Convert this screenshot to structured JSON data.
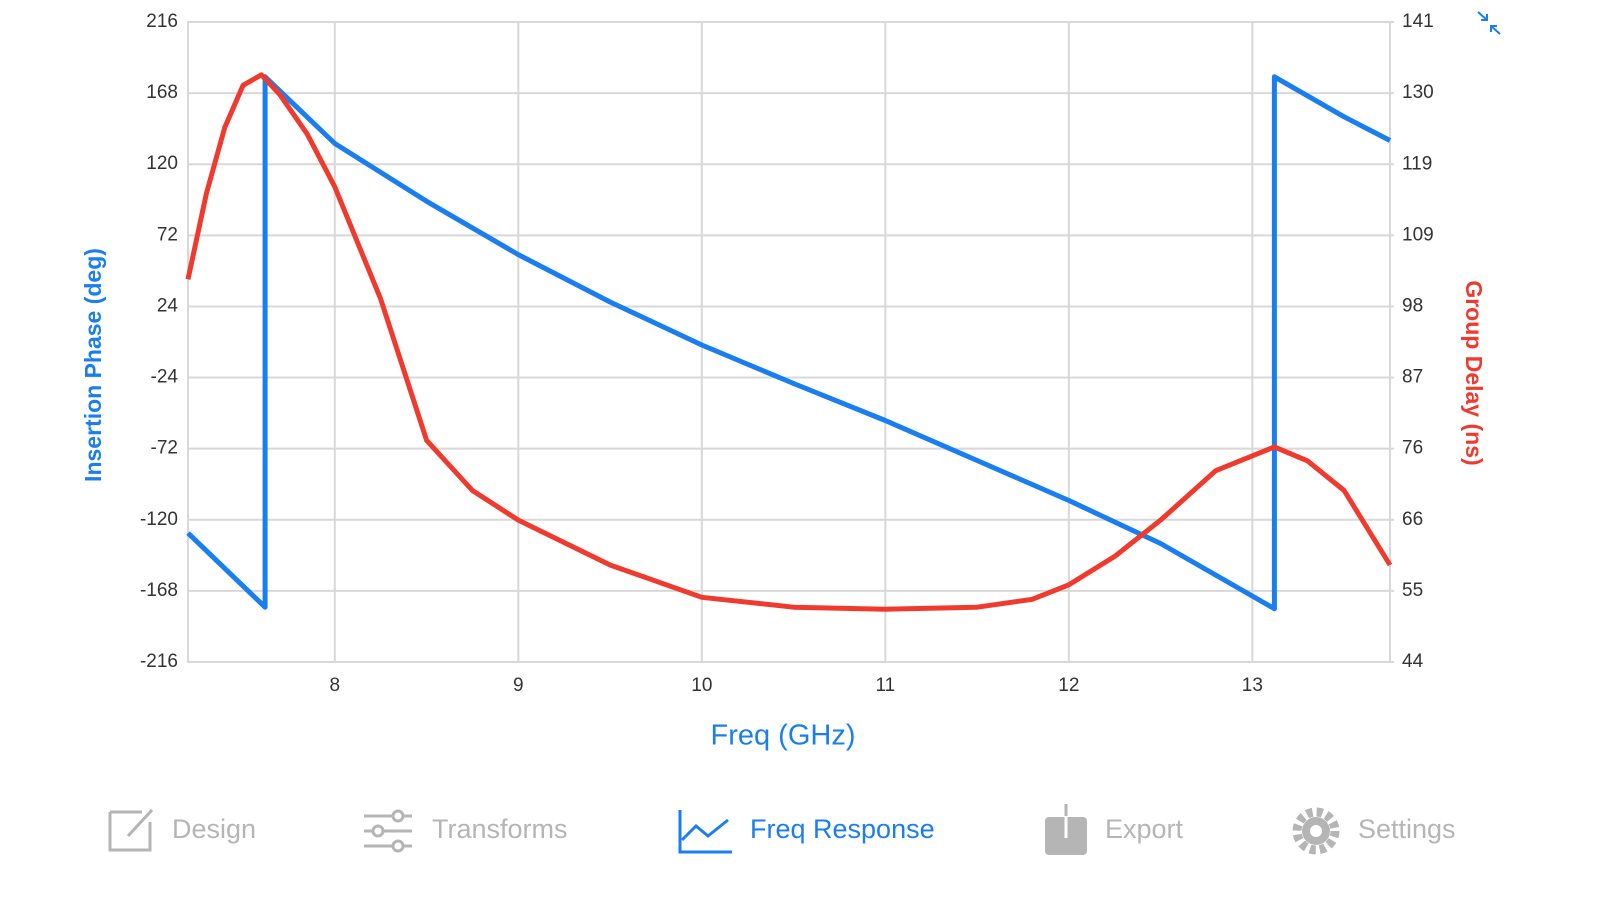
{
  "chart_data": {
    "type": "line",
    "xlabel": "Freq (GHz)",
    "ylabel": "Insertion Phase (deg)",
    "y2label": "Group Delay (ns)",
    "xlim": [
      7.2,
      13.75
    ],
    "xticks": [
      8,
      9,
      10,
      11,
      12,
      13
    ],
    "ylim": [
      -216,
      216
    ],
    "yticks": [
      -216,
      -168,
      -120,
      -72,
      -24,
      24,
      72,
      120,
      168,
      216
    ],
    "y2lim": [
      44,
      141
    ],
    "y2ticks": [
      44,
      {
        "value": 54.78,
        "label": "55"
      },
      {
        "value": 65.56,
        "label": "66"
      },
      {
        "value": 76.33,
        "label": "76"
      },
      {
        "value": 87.11,
        "label": "87"
      },
      {
        "value": 97.89,
        "label": "98"
      },
      {
        "value": 108.67,
        "label": "109"
      },
      {
        "value": 119.44,
        "label": "119"
      },
      {
        "value": 130.22,
        "label": "130"
      },
      141
    ],
    "grid": true,
    "series": [
      {
        "name": "Insertion Phase",
        "color": "#1a7ef0",
        "axis": "y",
        "x": [
          7.2,
          7.62,
          7.62,
          8,
          8.5,
          9,
          9.5,
          10,
          10.5,
          11,
          11.5,
          12,
          12.5,
          13.12,
          13.12,
          13.5,
          13.75
        ],
        "values": [
          -129,
          -179,
          179,
          134,
          95,
          59,
          27,
          -2,
          -28,
          -53,
          -80,
          -107,
          -136,
          -180,
          179,
          152,
          136
        ]
      },
      {
        "name": "Group Delay",
        "color": "#f03a2e",
        "axis": "y2",
        "x": [
          7.2,
          7.3,
          7.4,
          7.5,
          7.6,
          7.7,
          7.85,
          8,
          8.25,
          8.5,
          8.75,
          9,
          9.5,
          10,
          10.5,
          11,
          11.5,
          11.8,
          12,
          12.25,
          12.5,
          12.8,
          13.12,
          13.3,
          13.5,
          13.75
        ],
        "values": [
          102,
          115,
          125,
          131.4,
          133,
          130,
          124,
          116,
          99,
          77.6,
          70,
          65.5,
          58.7,
          53.8,
          52.3,
          52,
          52.3,
          53.5,
          55.7,
          60,
          65.5,
          73,
          76.6,
          74.5,
          70,
          58.7
        ]
      }
    ]
  },
  "tabs": [
    "Design",
    "Transforms",
    "Freq Response",
    "Export",
    "Settings"
  ]
}
